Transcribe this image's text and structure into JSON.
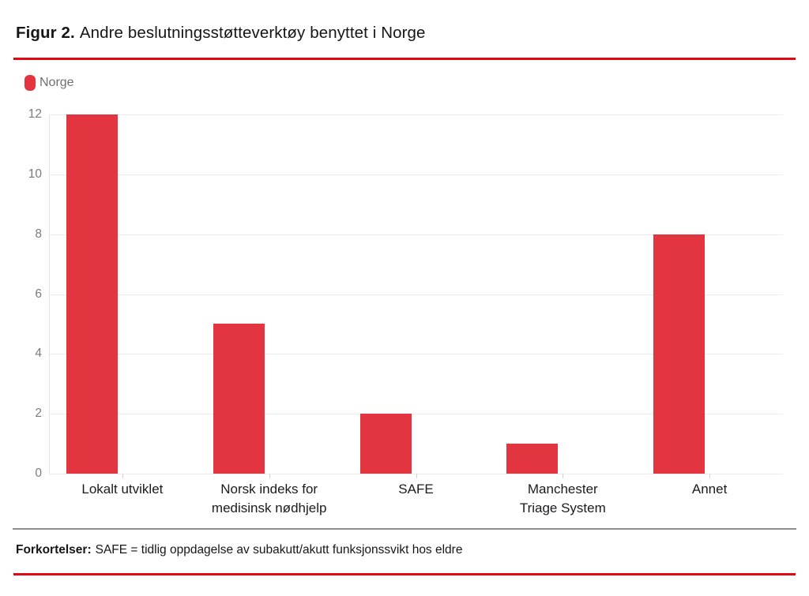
{
  "title": {
    "prefix": "Figur 2.",
    "text": "Andre beslutningsstøtteverktøy benyttet i Norge"
  },
  "legend": {
    "items": [
      {
        "label": "Norge",
        "color": "#e2353f"
      }
    ]
  },
  "footer": {
    "prefix": "Forkortelser:",
    "text": "SAFE = tidlig oppdagelse av subakutt/akutt funksjonssvikt hos eldre"
  },
  "colors": {
    "bar": "#e2353f",
    "rule_red": "#e30613",
    "separator_gray": "#8e8e8e",
    "grid": "#ececec",
    "axis_line": "#e2e2e2",
    "tick": "#d2d2d2",
    "y_label": "#7a7b7e",
    "x_label": "#1a1b1d"
  },
  "chart_data": {
    "type": "bar",
    "title": "Figur 2. Andre beslutningsstøtteverktøy benyttet i Norge",
    "categories": [
      "Lokalt utviklet",
      "Norsk indeks for medisinsk nødhjelp",
      "SAFE",
      "Manchester Triage System",
      "Annet"
    ],
    "label_lines": [
      [
        "Lokalt utviklet"
      ],
      [
        "Norsk indeks for",
        "medisinsk nødhjelp"
      ],
      [
        "SAFE"
      ],
      [
        "Manchester",
        "Triage System"
      ],
      [
        "Annet"
      ]
    ],
    "series": [
      {
        "name": "Norge",
        "values": [
          12,
          5,
          2,
          1,
          8
        ]
      }
    ],
    "xlabel": "",
    "ylabel": "",
    "ylim": [
      0,
      12
    ],
    "yticks": [
      0,
      2,
      4,
      6,
      8,
      10,
      12
    ],
    "grid": true,
    "legend_position": "top-left"
  }
}
